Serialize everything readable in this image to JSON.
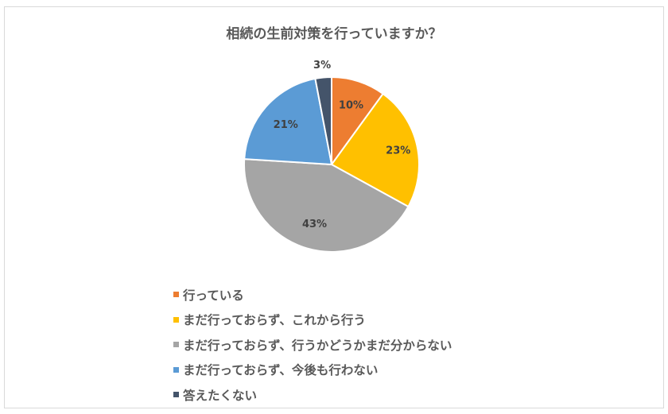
{
  "chart_data": {
    "type": "pie",
    "title": "相続の生前対策を行っていますか？",
    "categories": [
      "行っている",
      "まだ行っておらず、これから行う",
      "まだ行っておらず、行うかどうかまだ分からない",
      "まだ行っておらず、今後も行わない",
      "答えたくない"
    ],
    "values": [
      10,
      23,
      43,
      21,
      3
    ],
    "labels": [
      "10%",
      "23%",
      "43%",
      "21%",
      "3%"
    ],
    "colors": [
      "#ed7d31",
      "#ffc000",
      "#a5a5a5",
      "#5b9bd5",
      "#44546a"
    ],
    "legend_position": "bottom-left"
  }
}
